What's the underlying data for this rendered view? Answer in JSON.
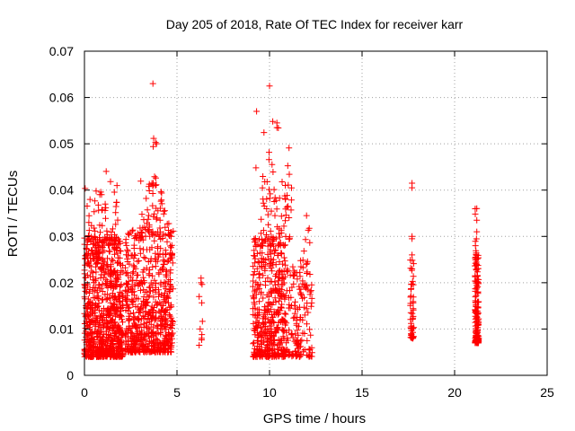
{
  "chart_data": {
    "type": "scatter",
    "title": "Day 205 of 2018, Rate Of TEC Index for receiver karr",
    "xlabel": "GPS time / hours",
    "ylabel": "ROTI / TECUs",
    "xlim": [
      0,
      25
    ],
    "ylim": [
      0,
      0.07
    ],
    "xticks": [
      0,
      5,
      10,
      15,
      20,
      25
    ],
    "yticks": [
      0,
      0.01,
      0.02,
      0.03,
      0.04,
      0.05,
      0.06,
      0.07
    ],
    "xtick_labels": [
      "0",
      "5",
      "10",
      "15",
      "20",
      "25"
    ],
    "ytick_labels": [
      "0",
      "0.01",
      "0.02",
      "0.03",
      "0.04",
      "0.05",
      "0.06",
      "0.07"
    ],
    "grid": true,
    "marker": "+",
    "marker_color": "#ff0000",
    "grid_color": "#a0a0a0",
    "series": [
      {
        "name": "ROTI",
        "clusters": [
          {
            "x_range": [
              0.0,
              2.1
            ],
            "y_range": [
              0.004,
              0.03
            ],
            "count": 750
          },
          {
            "x_range": [
              0.0,
              1.0
            ],
            "y_range": [
              0.025,
              0.042
            ],
            "count": 45
          },
          {
            "x_range": [
              1.1,
              1.9
            ],
            "y_range": [
              0.028,
              0.046
            ],
            "count": 35
          },
          {
            "x_range": [
              2.2,
              4.8
            ],
            "y_range": [
              0.005,
              0.032
            ],
            "count": 620
          },
          {
            "x_range": [
              3.0,
              4.8
            ],
            "y_range": [
              0.03,
              0.042
            ],
            "count": 55
          },
          {
            "x_range": [
              3.4,
              3.9
            ],
            "y_range": [
              0.04,
              0.052
            ],
            "count": 8
          },
          {
            "x_range": [
              6.3,
              6.4
            ],
            "y_range": [
              0.006,
              0.021
            ],
            "count": 6
          },
          {
            "x_range": [
              9.1,
              10.8
            ],
            "y_range": [
              0.004,
              0.03
            ],
            "count": 420
          },
          {
            "x_range": [
              9.5,
              11.2
            ],
            "y_range": [
              0.028,
              0.042
            ],
            "count": 70
          },
          {
            "x_range": [
              9.2,
              11.2
            ],
            "y_range": [
              0.042,
              0.055
            ],
            "count": 12
          },
          {
            "x_range": [
              10.8,
              12.3
            ],
            "y_range": [
              0.004,
              0.025
            ],
            "count": 160
          },
          {
            "x_range": [
              11.8,
              12.2
            ],
            "y_range": [
              0.022,
              0.035
            ],
            "count": 10
          },
          {
            "x_range": [
              17.6,
              17.8
            ],
            "y_range": [
              0.008,
              0.025
            ],
            "count": 50
          },
          {
            "x_range": [
              21.1,
              21.3
            ],
            "y_range": [
              0.007,
              0.027
            ],
            "count": 160
          },
          {
            "x_range": [
              21.1,
              21.3
            ],
            "y_range": [
              0.028,
              0.036
            ],
            "count": 5
          }
        ],
        "points": [
          [
            3.7,
            0.063
          ],
          [
            10.0,
            0.0625
          ],
          [
            9.3,
            0.057
          ],
          [
            3.9,
            0.05
          ],
          [
            17.7,
            0.0415
          ],
          [
            17.7,
            0.0405
          ],
          [
            17.7,
            0.03
          ],
          [
            17.7,
            0.0295
          ],
          [
            17.7,
            0.026
          ],
          [
            17.7,
            0.023
          ],
          [
            21.2,
            0.036
          ],
          [
            21.2,
            0.0335
          ],
          [
            21.2,
            0.031
          ],
          [
            6.3,
            0.021
          ],
          [
            6.3,
            0.02
          ],
          [
            6.2,
            0.017
          ],
          [
            6.2,
            0.0065
          ],
          [
            6.25,
            0.01
          ],
          [
            10.4,
            0.0535
          ],
          [
            10.4,
            0.0545
          ],
          [
            11.0,
            0.0365
          ],
          [
            12.0,
            0.0345
          ]
        ]
      }
    ]
  }
}
